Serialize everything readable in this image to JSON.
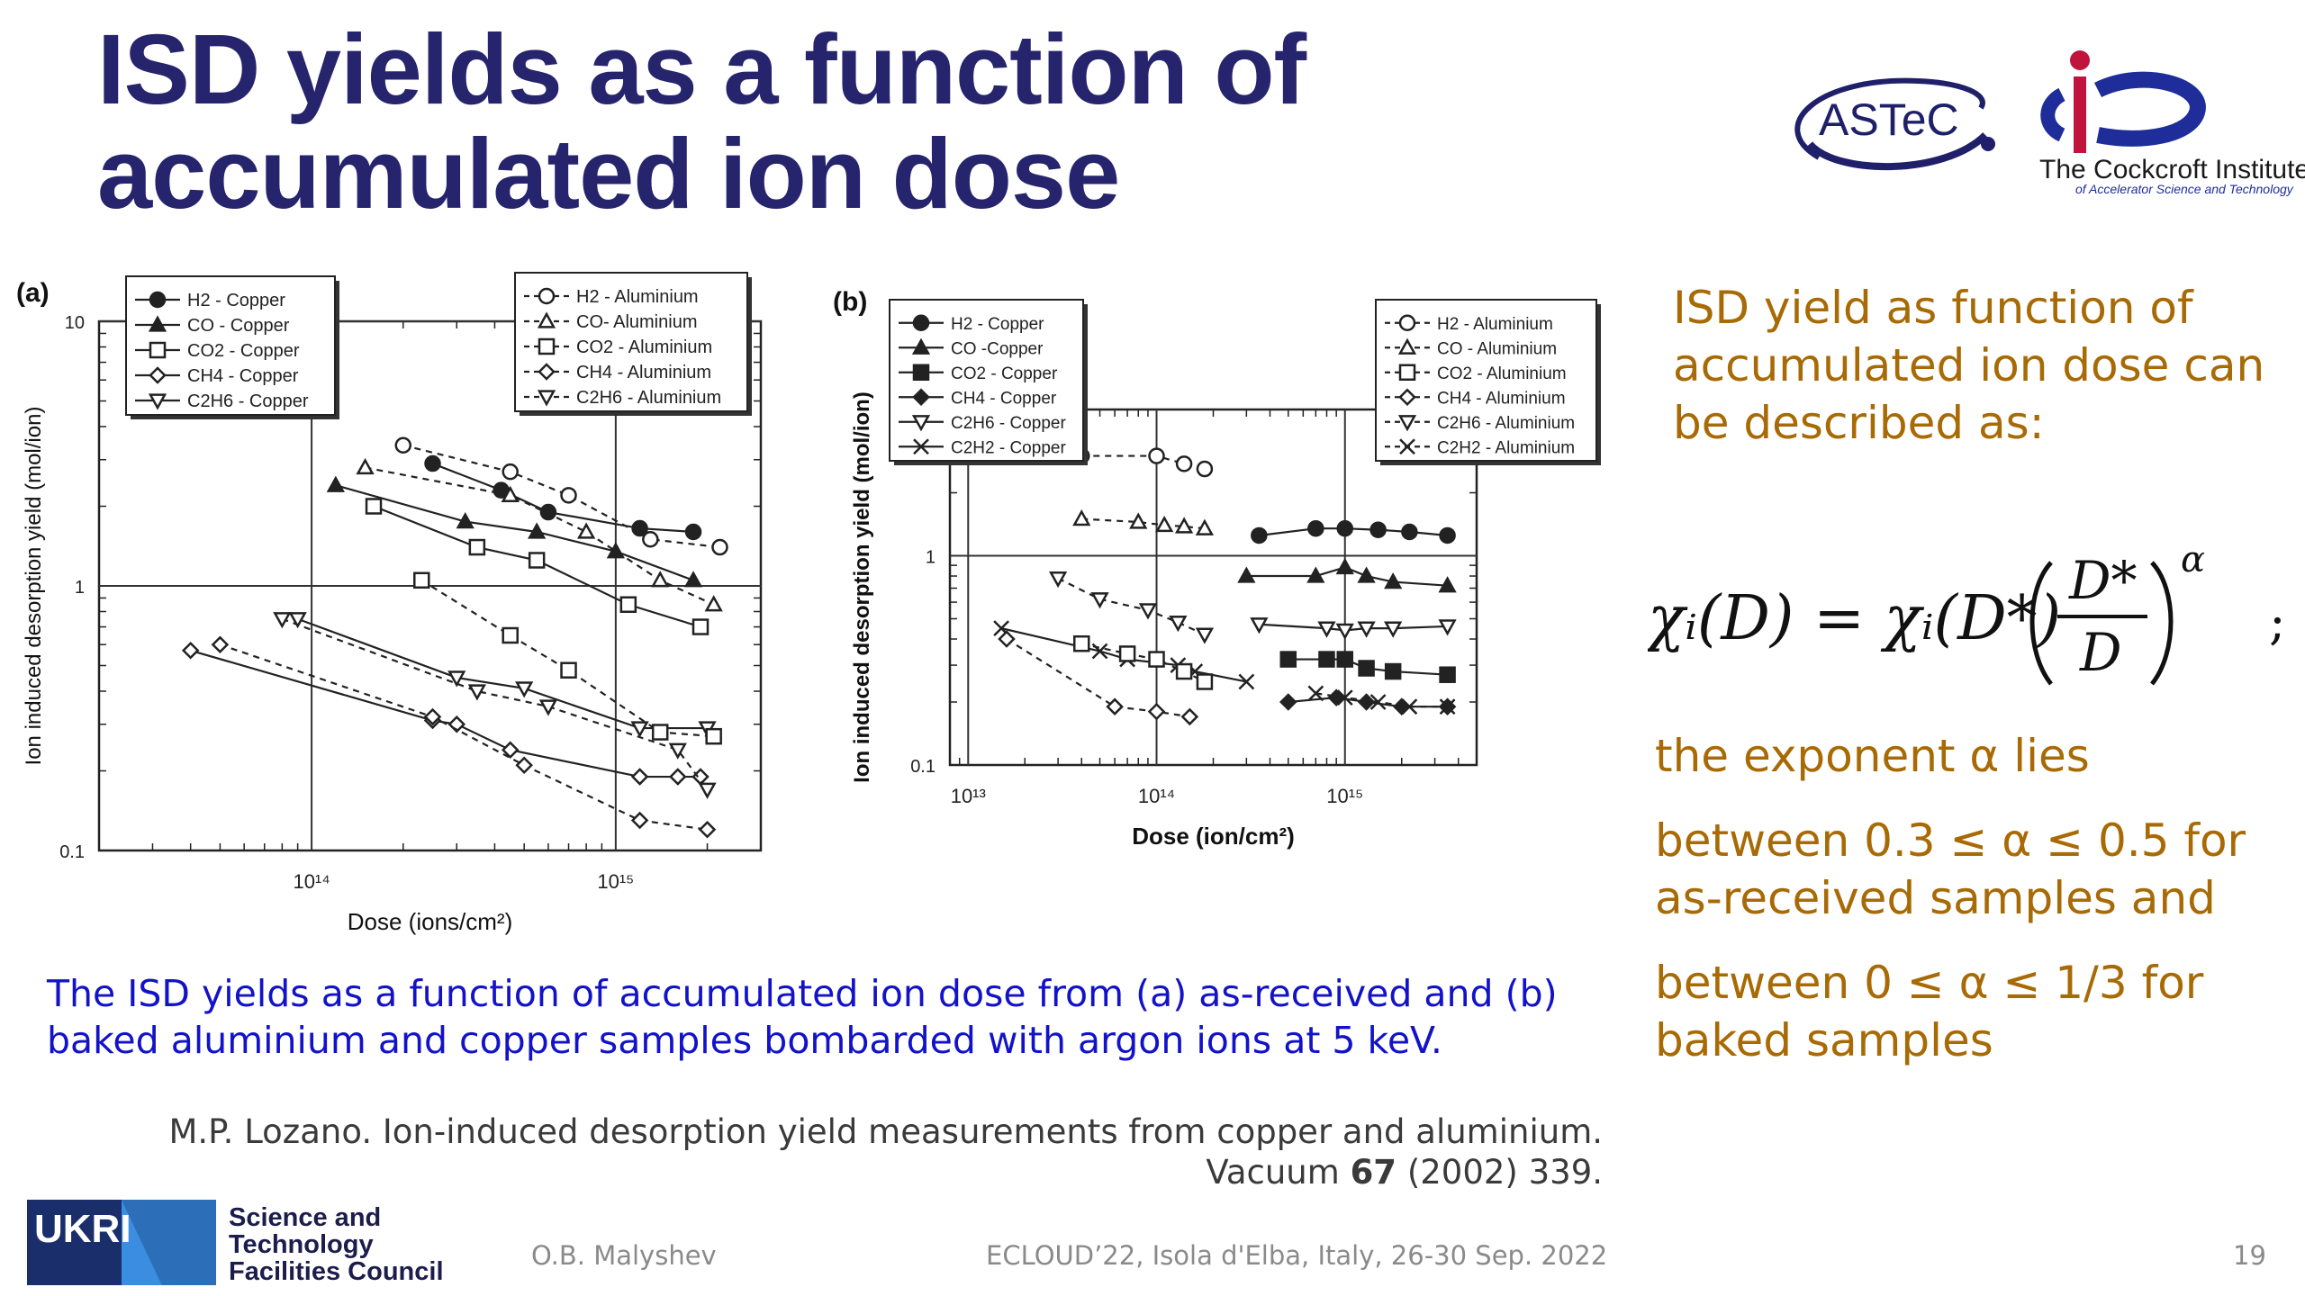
{
  "slide": {
    "title_line1": "ISD yields as a function of",
    "title_line2": "accumulated ion dose",
    "caption_line1": "The ISD yields as a function of accumulated ion dose from (a) as-received and (b)",
    "caption_line2": "baked aluminium and copper samples bombarded with argon ions at 5 keV.",
    "reference_line1": "M.P. Lozano. Ion-induced desorption yield measurements from copper and aluminium.",
    "reference_line2_pre": "Vacuum ",
    "reference_volume": "67",
    "reference_line2_post": " (2002) 339.",
    "right_text": "ISD yield as function of accumulated ion dose can be described as:",
    "exponent_line": "the exponent α lies",
    "as_received_line": "between 0.3 ≤ α ≤ 0.5 for as-received samples and",
    "baked_line": "between 0 ≤ α ≤ 1/3 for baked samples",
    "footer_author": "O.B. Malyshev",
    "footer_event": "ECLOUD’22, Isola d'Elba, Italy, 26-30 Sep. 2022",
    "footer_page": "19"
  },
  "logos": {
    "astec_text": "ASTeC",
    "cockcroft_text": "The Cockcroft Institute",
    "cockcroft_sub": "of Accelerator Science and Technology",
    "ukri_text": "UKRI",
    "stfc_line1": "Science and",
    "stfc_line2": "Technology",
    "stfc_line3": "Facilities Council"
  },
  "formula": {
    "lhs": "χᵢ(D) = χᵢ(D*)",
    "numerator": "D*",
    "denominator": "D",
    "exponent": "α",
    "terminator": ";"
  },
  "chart_data": [
    {
      "panel_label": "(a)",
      "type": "line",
      "xlabel": "Dose (ions/cm²)",
      "ylabel": "Ion induced desorption yield (mol/ion)",
      "xscale": "log",
      "yscale": "log",
      "xlim": [
        20000000000000.0,
        3000000000000000.0
      ],
      "ylim": [
        0.1,
        10
      ],
      "x_ticks": [
        {
          "v": 100000000000000.0,
          "label": "10¹⁴"
        },
        {
          "v": 1000000000000000.0,
          "label": "10¹⁵"
        }
      ],
      "y_ticks": [
        {
          "v": 0.1,
          "label": "0.1"
        },
        {
          "v": 1,
          "label": "1"
        },
        {
          "v": 10,
          "label": "10"
        }
      ],
      "legend_left": [
        "H2 - Copper",
        "CO - Copper",
        "CO2 - Copper",
        "CH4 - Copper",
        "C2H6 - Copper"
      ],
      "legend_right": [
        "H2 - Aluminium",
        "CO- Aluminium",
        "CO2 - Aluminium",
        "CH4 - Aluminium",
        "C2H6 - Aluminium"
      ],
      "series": [
        {
          "name": "H2 - Copper",
          "marker": "circle-filled",
          "dashed": false,
          "x": [
            250000000000000.0,
            420000000000000.0,
            600000000000000.0,
            1200000000000000.0,
            1800000000000000.0
          ],
          "y": [
            2.9,
            2.3,
            1.9,
            1.65,
            1.6
          ]
        },
        {
          "name": "CO - Copper",
          "marker": "triangle-filled",
          "dashed": false,
          "x": [
            120000000000000.0,
            320000000000000.0,
            550000000000000.0,
            1000000000000000.0,
            1800000000000000.0
          ],
          "y": [
            2.4,
            1.75,
            1.6,
            1.35,
            1.05
          ]
        },
        {
          "name": "CO2 - Copper",
          "marker": "square-open",
          "dashed": false,
          "x": [
            160000000000000.0,
            350000000000000.0,
            550000000000000.0,
            1100000000000000.0,
            1900000000000000.0
          ],
          "y": [
            2.0,
            1.4,
            1.25,
            0.85,
            0.7
          ]
        },
        {
          "name": "CH4 - Copper",
          "marker": "diamond-open",
          "dashed": false,
          "x": [
            40000000000000.0,
            250000000000000.0,
            300000000000000.0,
            450000000000000.0,
            1200000000000000.0,
            1600000000000000.0,
            1900000000000000.0
          ],
          "y": [
            0.57,
            0.31,
            0.3,
            0.24,
            0.19,
            0.19,
            0.19
          ]
        },
        {
          "name": "C2H6 - Copper",
          "marker": "triangle-down-open",
          "dashed": false,
          "x": [
            90000000000000.0,
            300000000000000.0,
            500000000000000.0,
            1200000000000000.0,
            2000000000000000.0
          ],
          "y": [
            0.75,
            0.45,
            0.41,
            0.29,
            0.29
          ]
        },
        {
          "name": "H2 - Aluminium",
          "marker": "circle-open",
          "dashed": true,
          "x": [
            200000000000000.0,
            450000000000000.0,
            700000000000000.0,
            1300000000000000.0,
            2200000000000000.0
          ],
          "y": [
            3.4,
            2.7,
            2.2,
            1.5,
            1.4
          ]
        },
        {
          "name": "CO- Aluminium",
          "marker": "triangle-open",
          "dashed": true,
          "x": [
            150000000000000.0,
            450000000000000.0,
            800000000000000.0,
            1400000000000000.0,
            2100000000000000.0
          ],
          "y": [
            2.8,
            2.2,
            1.6,
            1.05,
            0.85
          ]
        },
        {
          "name": "CO2 - Aluminium",
          "marker": "square-open",
          "dashed": true,
          "x": [
            230000000000000.0,
            450000000000000.0,
            700000000000000.0,
            1400000000000000.0,
            2100000000000000.0
          ],
          "y": [
            1.05,
            0.65,
            0.48,
            0.28,
            0.27
          ]
        },
        {
          "name": "CH4 - Aluminium",
          "marker": "diamond-open",
          "dashed": true,
          "x": [
            50000000000000.0,
            250000000000000.0,
            500000000000000.0,
            1200000000000000.0,
            2000000000000000.0
          ],
          "y": [
            0.6,
            0.32,
            0.21,
            0.13,
            0.12
          ]
        },
        {
          "name": "C2H6 - Aluminium",
          "marker": "triangle-down-open",
          "dashed": true,
          "x": [
            80000000000000.0,
            350000000000000.0,
            600000000000000.0,
            1600000000000000.0,
            2000000000000000.0
          ],
          "y": [
            0.75,
            0.4,
            0.35,
            0.24,
            0.17
          ]
        }
      ]
    },
    {
      "panel_label": "(b)",
      "type": "line",
      "xlabel": "Dose (ion/cm²)",
      "ylabel": "Ion induced desorption yield (mol/ion)",
      "xscale": "log",
      "yscale": "log",
      "xlim": [
        8000000000000.0,
        5000000000000000.0
      ],
      "ylim": [
        0.1,
        5
      ],
      "x_ticks": [
        {
          "v": 10000000000000.0,
          "label": "10¹³"
        },
        {
          "v": 100000000000000.0,
          "label": "10¹⁴"
        },
        {
          "v": 1000000000000000.0,
          "label": "10¹⁵"
        }
      ],
      "y_ticks": [
        {
          "v": 0.1,
          "label": "0.1"
        },
        {
          "v": 1,
          "label": "1"
        }
      ],
      "legend_left": [
        "H2 - Copper",
        "CO -Copper",
        "CO2 - Copper",
        "CH4 - Copper",
        "C2H6 - Copper",
        "C2H2 - Copper"
      ],
      "legend_right": [
        "H2 - Aluminium",
        "CO - Aluminium",
        "CO2 - Aluminium",
        "CH4 - Aluminium",
        "C2H6 - Aluminium",
        "C2H2 - Aluminium"
      ],
      "series": [
        {
          "name": "H2 - Copper",
          "marker": "circle-filled",
          "dashed": false,
          "x": [
            350000000000000.0,
            700000000000000.0,
            1000000000000000.0,
            1500000000000000.0,
            2200000000000000.0,
            3500000000000000.0
          ],
          "y": [
            1.25,
            1.35,
            1.35,
            1.33,
            1.3,
            1.25
          ]
        },
        {
          "name": "CO -Copper",
          "marker": "triangle-filled",
          "dashed": false,
          "x": [
            300000000000000.0,
            700000000000000.0,
            1000000000000000.0,
            1300000000000000.0,
            1800000000000000.0,
            3500000000000000.0
          ],
          "y": [
            0.8,
            0.8,
            0.88,
            0.8,
            0.75,
            0.72
          ]
        },
        {
          "name": "CO2 - Copper",
          "marker": "square-filled",
          "dashed": false,
          "x": [
            500000000000000.0,
            800000000000000.0,
            1000000000000000.0,
            1300000000000000.0,
            1800000000000000.0,
            3500000000000000.0
          ],
          "y": [
            0.32,
            0.32,
            0.32,
            0.29,
            0.28,
            0.27
          ]
        },
        {
          "name": "CH4 - Copper",
          "marker": "diamond-filled",
          "dashed": false,
          "x": [
            500000000000000.0,
            900000000000000.0,
            1300000000000000.0,
            2000000000000000.0,
            3500000000000000.0
          ],
          "y": [
            0.2,
            0.21,
            0.2,
            0.19,
            0.19
          ]
        },
        {
          "name": "C2H6 - Copper",
          "marker": "triangle-down-open",
          "dashed": false,
          "x": [
            350000000000000.0,
            800000000000000.0,
            1000000000000000.0,
            1300000000000000.0,
            1800000000000000.0,
            3500000000000000.0
          ],
          "y": [
            0.47,
            0.45,
            0.44,
            0.45,
            0.45,
            0.46
          ]
        },
        {
          "name": "C2H2 - Copper",
          "marker": "cross",
          "dashed": false,
          "x": [
            15000000000000.0,
            50000000000000.0,
            70000000000000.0,
            130000000000000.0,
            160000000000000.0,
            300000000000000.0
          ],
          "y": [
            0.45,
            0.35,
            0.32,
            0.3,
            0.28,
            0.25
          ]
        },
        {
          "name": "H2 - Aluminium",
          "marker": "circle-open",
          "dashed": true,
          "x": [
            40000000000000.0,
            100000000000000.0,
            140000000000000.0,
            180000000000000.0
          ],
          "y": [
            3.0,
            3.0,
            2.75,
            2.6
          ]
        },
        {
          "name": "CO - Aluminium",
          "marker": "triangle-open",
          "dashed": true,
          "x": [
            40000000000000.0,
            80000000000000.0,
            110000000000000.0,
            140000000000000.0,
            180000000000000.0
          ],
          "y": [
            1.5,
            1.45,
            1.4,
            1.38,
            1.35
          ]
        },
        {
          "name": "CO2 - Aluminium",
          "marker": "square-open",
          "dashed": true,
          "x": [
            40000000000000.0,
            70000000000000.0,
            100000000000000.0,
            140000000000000.0,
            180000000000000.0
          ],
          "y": [
            0.38,
            0.34,
            0.32,
            0.28,
            0.25
          ]
        },
        {
          "name": "CH4 - Aluminium",
          "marker": "diamond-open",
          "dashed": true,
          "x": [
            16000000000000.0,
            60000000000000.0,
            100000000000000.0,
            150000000000000.0
          ],
          "y": [
            0.4,
            0.19,
            0.18,
            0.17
          ]
        },
        {
          "name": "C2H6 - Aluminium",
          "marker": "triangle-down-open",
          "dashed": true,
          "x": [
            30000000000000.0,
            50000000000000.0,
            90000000000000.0,
            130000000000000.0,
            180000000000000.0
          ],
          "y": [
            0.78,
            0.62,
            0.55,
            0.48,
            0.42
          ]
        },
        {
          "name": "C2H2 - Aluminium",
          "marker": "cross",
          "dashed": true,
          "x": [
            700000000000000.0,
            1000000000000000.0,
            1500000000000000.0,
            2200000000000000.0,
            3500000000000000.0
          ],
          "y": [
            0.22,
            0.21,
            0.2,
            0.19,
            0.19
          ]
        }
      ]
    }
  ]
}
